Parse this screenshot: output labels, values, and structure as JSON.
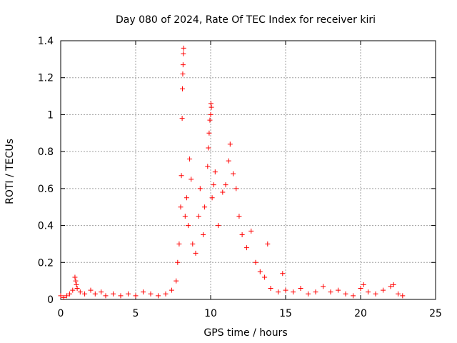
{
  "chart_data": {
    "type": "scatter",
    "title": "Day 080 of 2024, Rate Of TEC Index for receiver kiri",
    "xlabel": "GPS time / hours",
    "ylabel": "ROTI / TECUs",
    "xlim": [
      0,
      25
    ],
    "ylim": [
      0,
      1.4
    ],
    "xticks": [
      "0",
      "5",
      "10",
      "15",
      "20",
      "25"
    ],
    "yticks": [
      "0",
      "0.2",
      "0.4",
      "0.6",
      "0.8",
      "1",
      "1.2",
      "1.4"
    ],
    "grid": true,
    "marker": "+",
    "color": "#ff0000",
    "series": [
      {
        "name": "ROTI",
        "points": [
          [
            0.0,
            0.02
          ],
          [
            0.2,
            0.01
          ],
          [
            0.4,
            0.02
          ],
          [
            0.6,
            0.03
          ],
          [
            0.8,
            0.05
          ],
          [
            0.95,
            0.12
          ],
          [
            1.0,
            0.1
          ],
          [
            1.05,
            0.08
          ],
          [
            1.1,
            0.06
          ],
          [
            1.3,
            0.04
          ],
          [
            1.6,
            0.03
          ],
          [
            2.0,
            0.05
          ],
          [
            2.3,
            0.03
          ],
          [
            2.7,
            0.04
          ],
          [
            3.0,
            0.02
          ],
          [
            3.5,
            0.03
          ],
          [
            4.0,
            0.02
          ],
          [
            4.5,
            0.03
          ],
          [
            5.0,
            0.02
          ],
          [
            5.5,
            0.04
          ],
          [
            6.0,
            0.03
          ],
          [
            6.5,
            0.02
          ],
          [
            7.0,
            0.03
          ],
          [
            7.4,
            0.05
          ],
          [
            7.7,
            0.1
          ],
          [
            7.8,
            0.2
          ],
          [
            7.9,
            0.3
          ],
          [
            8.0,
            0.5
          ],
          [
            8.05,
            0.67
          ],
          [
            8.1,
            0.98
          ],
          [
            8.12,
            1.14
          ],
          [
            8.14,
            1.22
          ],
          [
            8.16,
            1.27
          ],
          [
            8.18,
            1.33
          ],
          [
            8.2,
            1.36
          ],
          [
            8.3,
            0.45
          ],
          [
            8.4,
            0.55
          ],
          [
            8.5,
            0.4
          ],
          [
            8.6,
            0.76
          ],
          [
            8.7,
            0.65
          ],
          [
            8.8,
            0.3
          ],
          [
            9.0,
            0.25
          ],
          [
            9.2,
            0.45
          ],
          [
            9.3,
            0.6
          ],
          [
            9.5,
            0.35
          ],
          [
            9.6,
            0.5
          ],
          [
            9.8,
            0.72
          ],
          [
            9.85,
            0.82
          ],
          [
            9.9,
            0.9
          ],
          [
            9.95,
            0.97
          ],
          [
            10.0,
            1.0
          ],
          [
            10.02,
            1.06
          ],
          [
            10.05,
            1.04
          ],
          [
            10.1,
            0.55
          ],
          [
            10.2,
            0.62
          ],
          [
            10.3,
            0.69
          ],
          [
            10.5,
            0.4
          ],
          [
            10.8,
            0.58
          ],
          [
            11.0,
            0.62
          ],
          [
            11.2,
            0.75
          ],
          [
            11.3,
            0.84
          ],
          [
            11.5,
            0.68
          ],
          [
            11.7,
            0.6
          ],
          [
            11.9,
            0.45
          ],
          [
            12.1,
            0.35
          ],
          [
            12.4,
            0.28
          ],
          [
            12.7,
            0.37
          ],
          [
            13.0,
            0.2
          ],
          [
            13.3,
            0.15
          ],
          [
            13.6,
            0.12
          ],
          [
            13.8,
            0.3
          ],
          [
            14.0,
            0.06
          ],
          [
            14.5,
            0.04
          ],
          [
            14.8,
            0.14
          ],
          [
            15.0,
            0.05
          ],
          [
            15.5,
            0.04
          ],
          [
            16.0,
            0.06
          ],
          [
            16.5,
            0.03
          ],
          [
            17.0,
            0.04
          ],
          [
            17.5,
            0.07
          ],
          [
            18.0,
            0.04
          ],
          [
            18.5,
            0.05
          ],
          [
            19.0,
            0.03
          ],
          [
            19.5,
            0.02
          ],
          [
            20.0,
            0.06
          ],
          [
            20.2,
            0.08
          ],
          [
            20.5,
            0.04
          ],
          [
            21.0,
            0.03
          ],
          [
            21.5,
            0.05
          ],
          [
            22.0,
            0.07
          ],
          [
            22.2,
            0.08
          ],
          [
            22.5,
            0.03
          ],
          [
            22.8,
            0.02
          ]
        ]
      }
    ]
  }
}
